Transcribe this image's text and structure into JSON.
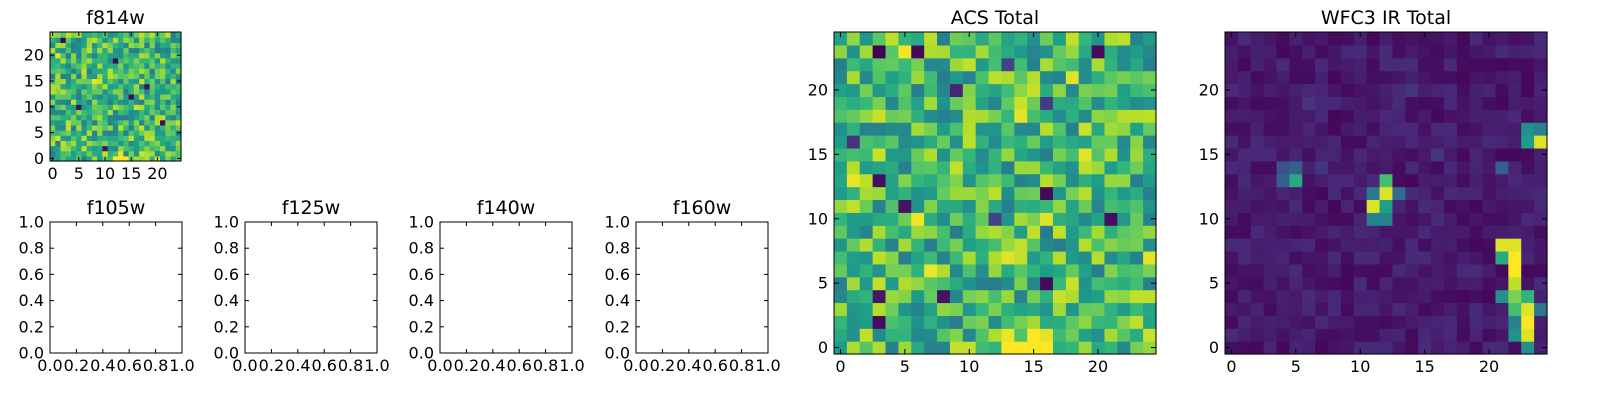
{
  "chart_data": [
    {
      "type": "heatmap",
      "id": "f814w",
      "title": "f814w",
      "colormap": "viridis",
      "grid_size": [
        25,
        25
      ],
      "xlim": [
        -0.5,
        24.5
      ],
      "ylim": [
        -0.5,
        24.5
      ],
      "xticks": [
        0,
        5,
        10,
        15,
        20
      ],
      "yticks": [
        0,
        5,
        10,
        15,
        20
      ],
      "values": [],
      "grid": false
    },
    {
      "type": "heatmap",
      "id": "f105w",
      "title": "f105w",
      "empty": true,
      "xlim": [
        0,
        1
      ],
      "ylim": [
        0,
        1
      ],
      "xticks": [
        "0.0",
        "0.2",
        "0.4",
        "0.6",
        "0.8",
        "1.0"
      ],
      "yticks": [
        "0.0",
        "0.2",
        "0.4",
        "0.6",
        "0.8",
        "1.0"
      ]
    },
    {
      "type": "heatmap",
      "id": "f125w",
      "title": "f125w",
      "empty": true,
      "xlim": [
        0,
        1
      ],
      "ylim": [
        0,
        1
      ],
      "xticks": [
        "0.0",
        "0.2",
        "0.4",
        "0.6",
        "0.8",
        "1.0"
      ],
      "yticks": [
        "0.0",
        "0.2",
        "0.4",
        "0.6",
        "0.8",
        "1.0"
      ]
    },
    {
      "type": "heatmap",
      "id": "f140w",
      "title": "f140w",
      "empty": true,
      "xlim": [
        0,
        1
      ],
      "ylim": [
        0,
        1
      ],
      "xticks": [
        "0.0",
        "0.2",
        "0.4",
        "0.6",
        "0.8",
        "1.0"
      ],
      "yticks": [
        "0.0",
        "0.2",
        "0.4",
        "0.6",
        "0.8",
        "1.0"
      ]
    },
    {
      "type": "heatmap",
      "id": "f160w",
      "title": "f160w",
      "empty": true,
      "xlim": [
        0,
        1
      ],
      "ylim": [
        0,
        1
      ],
      "xticks": [
        "0.0",
        "0.2",
        "0.4",
        "0.6",
        "0.8",
        "1.0"
      ],
      "yticks": [
        "0.0",
        "0.2",
        "0.4",
        "0.6",
        "0.8",
        "1.0"
      ]
    },
    {
      "type": "heatmap",
      "id": "acs-total",
      "title": "ACS Total",
      "colormap": "viridis",
      "grid_size": [
        25,
        25
      ],
      "xlim": [
        -0.5,
        24.5
      ],
      "ylim": [
        -0.5,
        24.5
      ],
      "xticks": [
        0,
        5,
        10,
        15,
        20
      ],
      "yticks": [
        0,
        5,
        10,
        15,
        20
      ],
      "values": [],
      "grid": false
    },
    {
      "type": "heatmap",
      "id": "wfc3-ir-total",
      "title": "WFC3 IR Total",
      "colormap": "viridis",
      "grid_size": [
        25,
        25
      ],
      "xlim": [
        -0.5,
        24.5
      ],
      "ylim": [
        -0.5,
        24.5
      ],
      "xticks": [
        0,
        5,
        10,
        15,
        20
      ],
      "yticks": [
        0,
        5,
        10,
        15,
        20
      ],
      "values": [],
      "grid": false
    }
  ]
}
